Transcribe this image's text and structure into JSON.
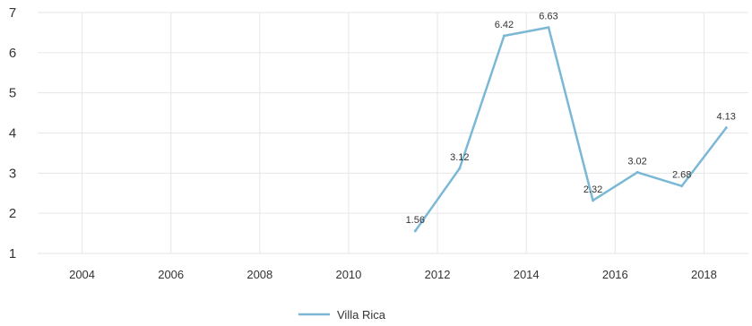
{
  "chart_data": {
    "type": "line",
    "x": [
      2011.5,
      2012.5,
      2013.5,
      2014.5,
      2015.5,
      2016.5,
      2017.5,
      2018.5
    ],
    "series": [
      {
        "name": "Villa Rica",
        "values": [
          1.56,
          3.12,
          6.42,
          6.63,
          2.32,
          3.02,
          2.68,
          4.13
        ],
        "labels": [
          "1.56",
          "3.12",
          "6.42",
          "6.63",
          "2.32",
          "3.02",
          "2.68",
          "4.13"
        ],
        "color": "#7ab8d6"
      }
    ],
    "xticks": [
      "2004",
      "2006",
      "2008",
      "2010",
      "2012",
      "2014",
      "2016",
      "2018"
    ],
    "yticks": [
      "1",
      "2",
      "3",
      "4",
      "5",
      "6",
      "7"
    ],
    "xlim": [
      2003,
      2019
    ],
    "ylim": [
      1,
      7
    ],
    "grid": true,
    "legend": "bottom-center",
    "title": "",
    "xlabel": "",
    "ylabel": ""
  }
}
